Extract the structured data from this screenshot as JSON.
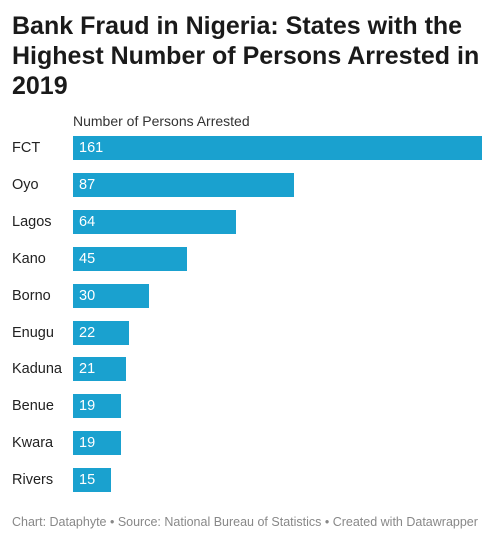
{
  "title": "Bank Fraud in Nigeria: States with the Highest Number of Persons Arrested in 2019",
  "footer": "Chart: Dataphyte • Source: National Bureau of Statistics • Created with Datawrapper",
  "colors": {
    "bar": "#1aa1cf"
  },
  "chart_data": {
    "type": "bar",
    "orientation": "horizontal",
    "title": "Bank Fraud in Nigeria: States with the Highest Number of Persons Arrested in 2019",
    "column_header": "Number of Persons Arrested",
    "categories": [
      "FCT",
      "Oyo",
      "Lagos",
      "Kano",
      "Borno",
      "Enugu",
      "Kaduna",
      "Benue",
      "Kwara",
      "Rivers"
    ],
    "values": [
      161,
      87,
      64,
      45,
      30,
      22,
      21,
      19,
      19,
      15
    ],
    "xlim": [
      0,
      161
    ],
    "grid": false,
    "legend": "none",
    "data_labels": "inside-left"
  }
}
